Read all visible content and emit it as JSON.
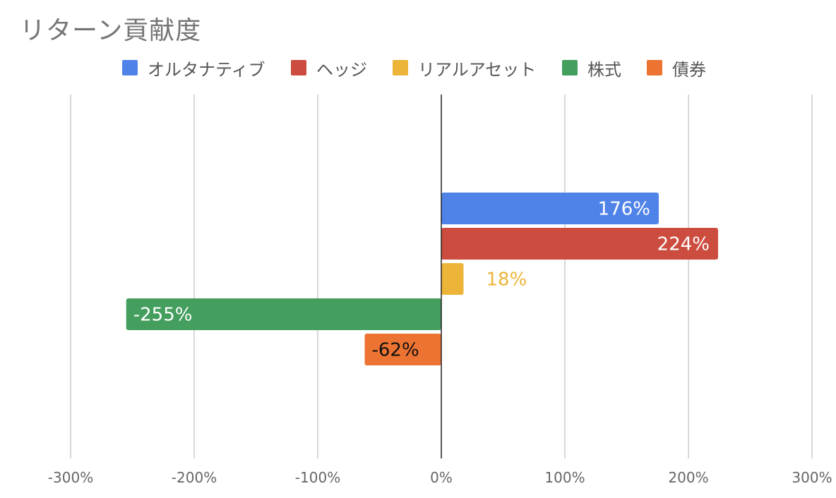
{
  "chart_data": {
    "type": "bar",
    "orientation": "horizontal",
    "title": "リターン貢献度",
    "xlabel": "",
    "ylabel": "",
    "xlim": [
      -300,
      300
    ],
    "x_ticks": [
      "-300%",
      "-200%",
      "-100%",
      "0%",
      "100%",
      "200%",
      "300%"
    ],
    "x_tick_values": [
      -300,
      -200,
      -100,
      0,
      100,
      200,
      300
    ],
    "grid": "vertical",
    "legend_position": "top",
    "series": [
      {
        "name": "オルタナティブ",
        "value": 176,
        "label": "176%",
        "color": "#5083e8",
        "label_color": "#ffffff",
        "label_placement": "inside-end"
      },
      {
        "name": "ヘッジ",
        "value": 224,
        "label": "224%",
        "color": "#cc4d3f",
        "label_color": "#ffffff",
        "label_placement": "inside-end"
      },
      {
        "name": "リアルアセット",
        "value": 18,
        "label": "18%",
        "color": "#ecb53a",
        "label_color": "#ecb53a",
        "label_placement": "outside-end"
      },
      {
        "name": "株式",
        "value": -255,
        "label": "-255%",
        "color": "#449e5e",
        "label_color": "#ffffff",
        "label_placement": "inside-end"
      },
      {
        "name": "債券",
        "value": -62,
        "label": "-62%",
        "color": "#ec7332",
        "label_color": "#111111",
        "label_placement": "inside-end"
      }
    ]
  }
}
